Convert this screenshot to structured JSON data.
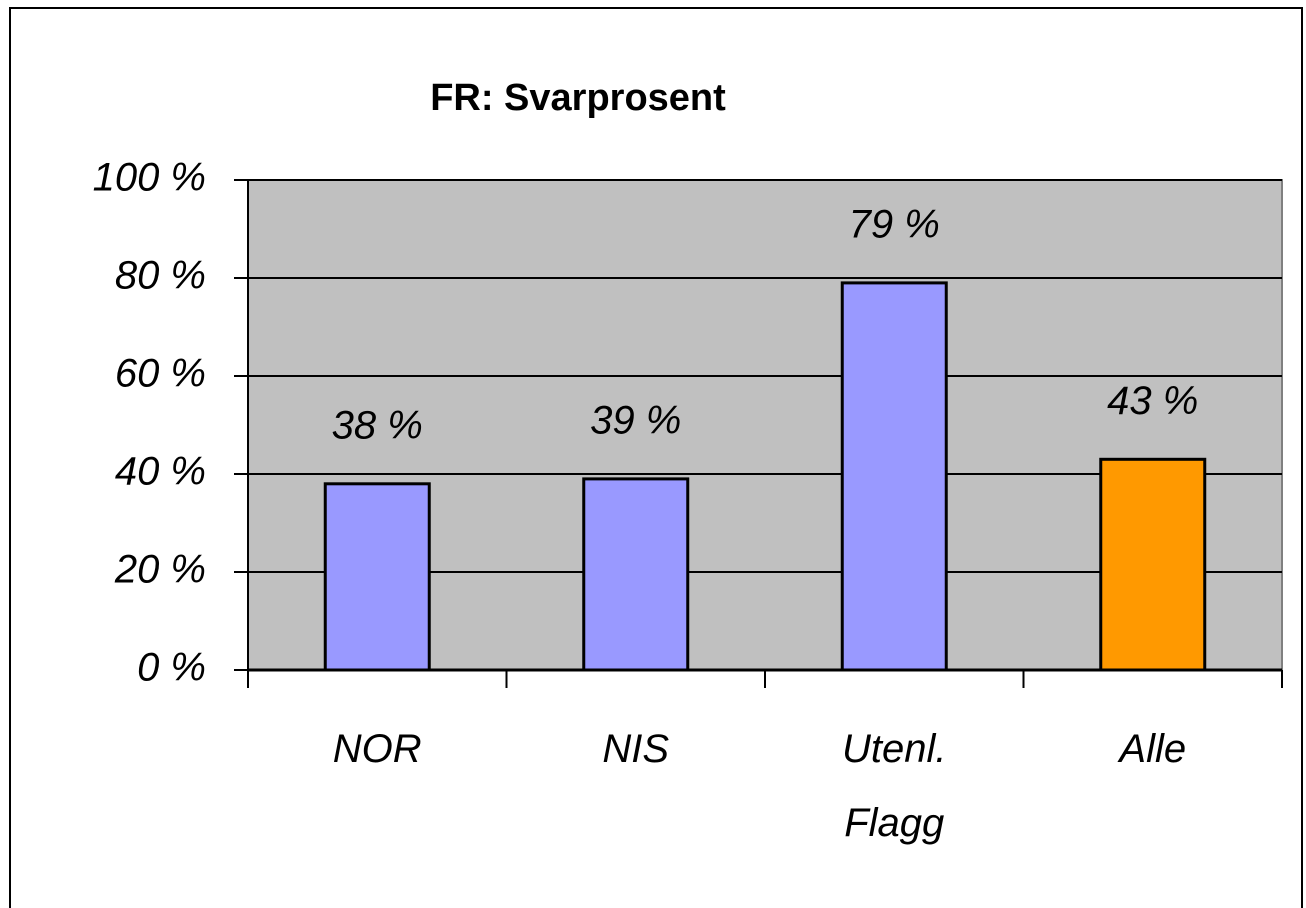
{
  "chart_data": {
    "type": "bar",
    "title": "FR: Svarprosent",
    "categories": [
      "NOR",
      "NIS",
      "Utenl. Flagg",
      "Alle"
    ],
    "values": [
      38,
      39,
      79,
      43
    ],
    "value_labels": [
      "38 %",
      "39 %",
      "79 %",
      "43 %"
    ],
    "colors": [
      "#9999ff",
      "#9999ff",
      "#9999ff",
      "#ff9900"
    ],
    "ylim": [
      0,
      100
    ],
    "yticks": [
      {
        "value": 0,
        "label": "0 %"
      },
      {
        "value": 20,
        "label": "20 %"
      },
      {
        "value": 40,
        "label": "40 %"
      },
      {
        "value": 60,
        "label": "60 %"
      },
      {
        "value": 80,
        "label": "80 %"
      },
      {
        "value": 100,
        "label": "100 %"
      }
    ],
    "grid": true
  }
}
